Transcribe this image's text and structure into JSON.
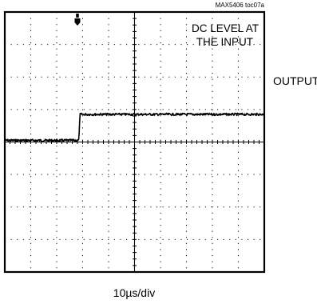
{
  "chart_data": {
    "type": "line",
    "annotation_id": "MAX5406 toc07a",
    "annotation_text_line1": "DC LEVEL AT",
    "annotation_text_line2": "THE INPUT",
    "trace_label": "OUTPUT",
    "xlabel": "10µs/div",
    "grid": true,
    "grid_divisions": {
      "x": 10,
      "y": 8
    },
    "trigger_position_div": 2.8,
    "trace": {
      "before_step_div": 3.95,
      "after_step_div": 3.15,
      "step_at_div": 2.85,
      "step_duration_div": 0.05,
      "noise_div": 0.035
    }
  }
}
